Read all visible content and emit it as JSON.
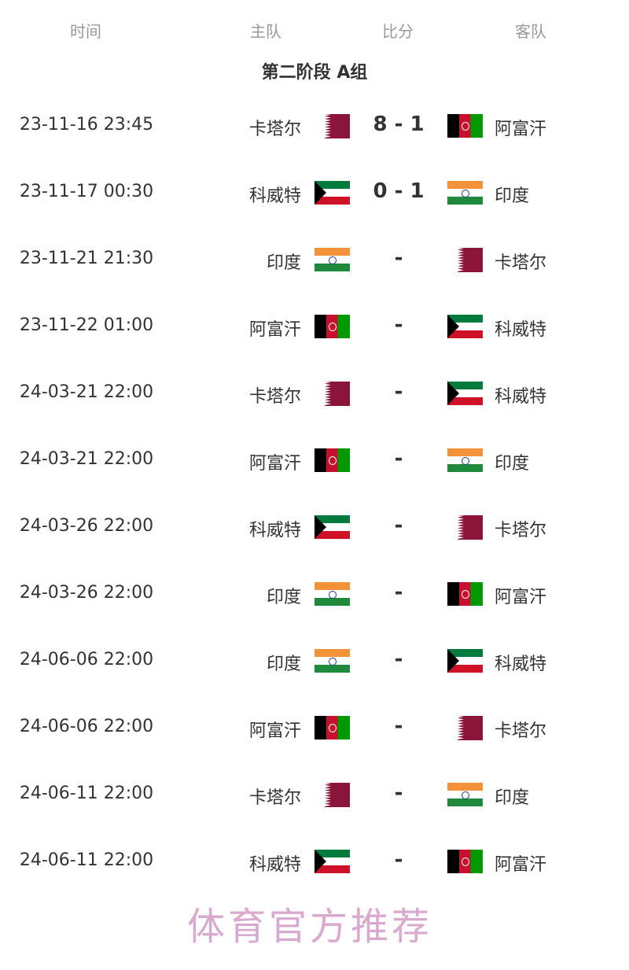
{
  "headers": {
    "time": "时间",
    "home": "主队",
    "score": "比分",
    "away": "客队"
  },
  "title": "第二阶段 A组",
  "flags": {
    "卡塔尔": "qatar",
    "阿富汗": "afg",
    "科威特": "kuwait",
    "印度": "india"
  },
  "matches": [
    {
      "time": "23-11-16 23:45",
      "home": "卡塔尔",
      "score": "8 - 1",
      "away": "阿富汗"
    },
    {
      "time": "23-11-17 00:30",
      "home": "科威特",
      "score": "0 - 1",
      "away": "印度"
    },
    {
      "time": "23-11-21 21:30",
      "home": "印度",
      "score": "-",
      "away": "卡塔尔"
    },
    {
      "time": "23-11-22 01:00",
      "home": "阿富汗",
      "score": "-",
      "away": "科威特"
    },
    {
      "time": "24-03-21 22:00",
      "home": "卡塔尔",
      "score": "-",
      "away": "科威特"
    },
    {
      "time": "24-03-21 22:00",
      "home": "阿富汗",
      "score": "-",
      "away": "印度"
    },
    {
      "time": "24-03-26 22:00",
      "home": "科威特",
      "score": "-",
      "away": "卡塔尔"
    },
    {
      "time": "24-03-26 22:00",
      "home": "印度",
      "score": "-",
      "away": "阿富汗"
    },
    {
      "time": "24-06-06 22:00",
      "home": "印度",
      "score": "-",
      "away": "科威特"
    },
    {
      "time": "24-06-06 22:00",
      "home": "阿富汗",
      "score": "-",
      "away": "卡塔尔"
    },
    {
      "time": "24-06-11 22:00",
      "home": "卡塔尔",
      "score": "-",
      "away": "印度"
    },
    {
      "time": "24-06-11 22:00",
      "home": "科威特",
      "score": "-",
      "away": "阿富汗"
    }
  ],
  "watermark": "体育官方推荐"
}
